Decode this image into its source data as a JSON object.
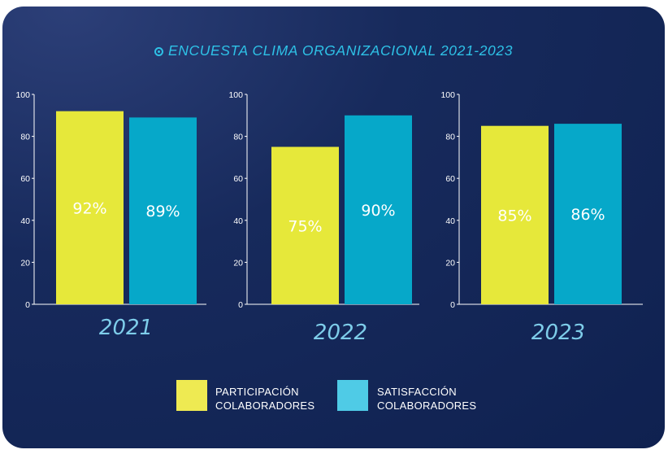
{
  "chart_data": {
    "type": "bar",
    "title": "ENCUESTA CLIMA ORGANIZACIONAL 2021-2023",
    "ylim": [
      0,
      100
    ],
    "yticks": [
      0,
      20,
      40,
      60,
      80,
      100
    ],
    "groups": [
      {
        "label": "2021",
        "values": [
          92,
          89
        ],
        "value_labels": [
          "92%",
          "89%"
        ]
      },
      {
        "label": "2022",
        "values": [
          75,
          90
        ],
        "value_labels": [
          "75%",
          "90%"
        ]
      },
      {
        "label": "2023",
        "values": [
          85,
          86
        ],
        "value_labels": [
          "85%",
          "86%"
        ]
      }
    ],
    "series": [
      {
        "name_lines": [
          "PARTICIPACIÓN",
          "COLABORADORES"
        ],
        "color": "#e6e83a",
        "legend_color": "#eeea52"
      },
      {
        "name_lines": [
          "SATISFACCIÓN",
          "COLABORADORES"
        ],
        "color": "#06a8c9",
        "legend_color": "#4fcbe6"
      }
    ],
    "grid": false,
    "legend_position": "bottom-center"
  },
  "colors": {
    "background": "#142758",
    "title": "#2ec1e6",
    "group_label": "#7ecdea",
    "axis": "#ffffff"
  },
  "icons": {
    "title": "target-icon"
  }
}
